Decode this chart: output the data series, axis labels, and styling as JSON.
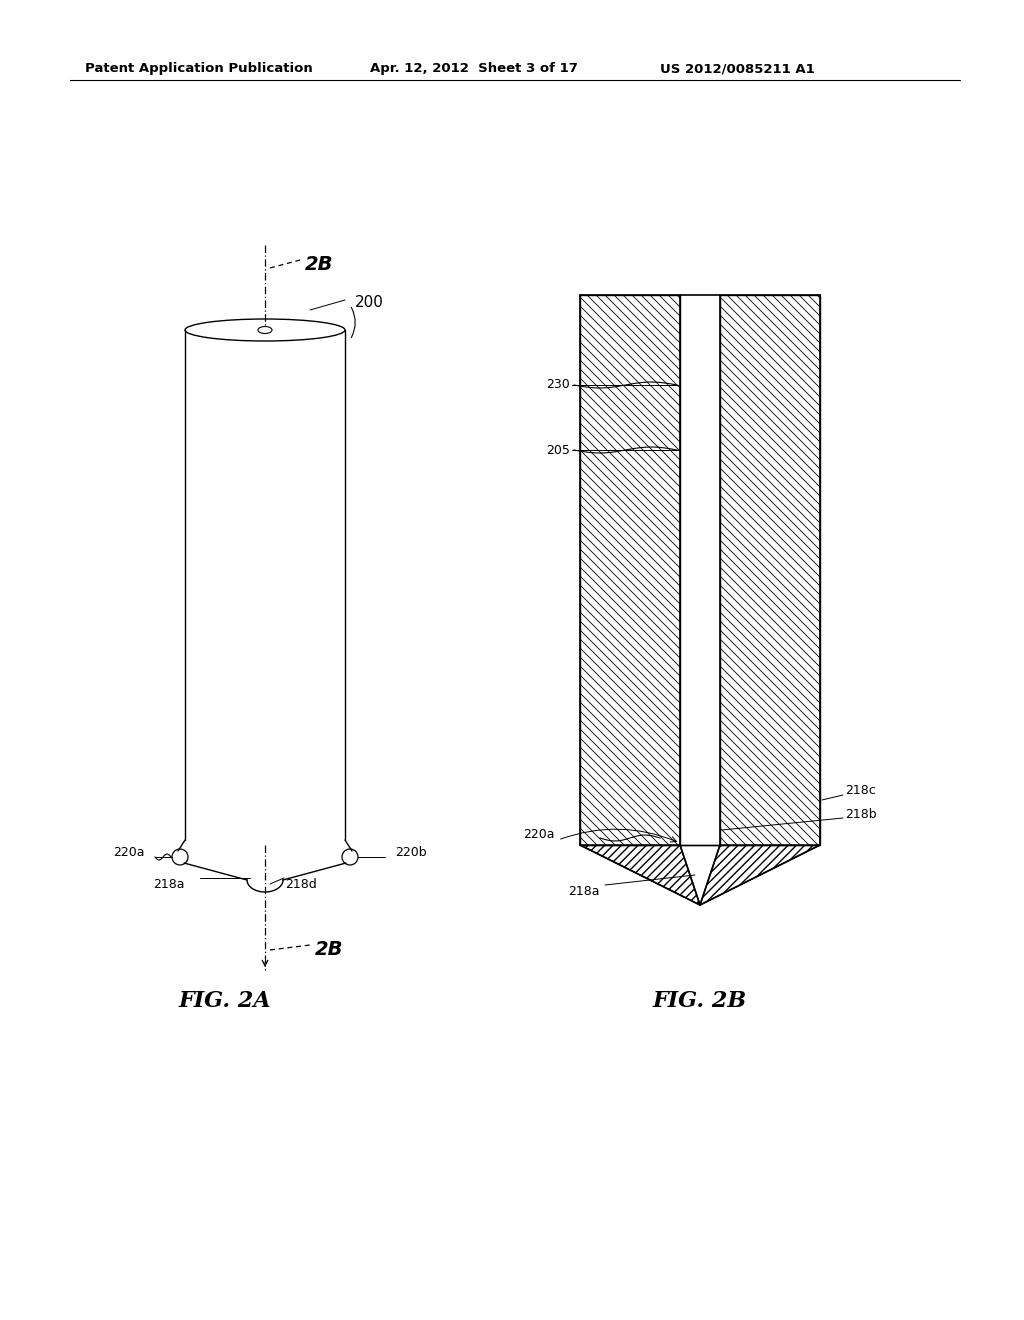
{
  "background_color": "#ffffff",
  "header_text": "Patent Application Publication",
  "header_date": "Apr. 12, 2012  Sheet 3 of 17",
  "header_patent": "US 2012/0085211 A1",
  "fig2a_label": "FIG. 2A",
  "fig2b_label": "FIG. 2B",
  "annotations_2a": {
    "label_2B_top": "2B",
    "label_200": "200",
    "label_220a": "220a",
    "label_220b": "220b",
    "label_218a": "218a",
    "label_218d": "218d",
    "label_2B_bot": "2B"
  },
  "annotations_2b": {
    "label_230": "230",
    "label_205": "205",
    "label_218c": "218c",
    "label_218b": "218b",
    "label_220a": "220a",
    "label_218a": "218a"
  }
}
